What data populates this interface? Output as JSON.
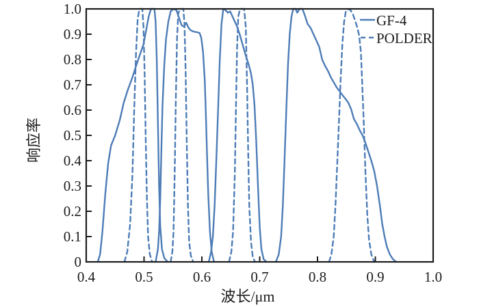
{
  "chart_data": {
    "type": "line",
    "title": "",
    "xlabel": "波长/μm",
    "ylabel": "响应率",
    "xlim": [
      0.4,
      1.0
    ],
    "ylim": [
      0,
      1.0
    ],
    "grid": false,
    "legend_position": "top-right",
    "line_color": "#4d7cb6",
    "axis_color": "#1c1c1c",
    "x_tick_values": [
      0.4,
      0.5,
      0.6,
      0.7,
      0.8,
      0.9,
      1.0
    ],
    "x_tick_labels": [
      "0.4",
      "0.5",
      "0.6",
      "0.7",
      "0.8",
      "0.9",
      "1.0"
    ],
    "y_tick_values": [
      0,
      0.1,
      0.2,
      0.3,
      0.4,
      0.5,
      0.6,
      0.7,
      0.8,
      0.9,
      1.0
    ],
    "y_tick_labels": [
      "0",
      "0.1",
      "0.2",
      "0.3",
      "0.4",
      "0.5",
      "0.6",
      "0.7",
      "0.8",
      "0.9",
      "1.0"
    ],
    "series": [
      {
        "name": "GF-4",
        "line_style": "solid",
        "bands": [
          [
            [
              0.42,
              0
            ],
            [
              0.424,
              0.03
            ],
            [
              0.428,
              0.12
            ],
            [
              0.433,
              0.27
            ],
            [
              0.438,
              0.39
            ],
            [
              0.443,
              0.46
            ],
            [
              0.45,
              0.5
            ],
            [
              0.458,
              0.56
            ],
            [
              0.465,
              0.63
            ],
            [
              0.472,
              0.68
            ],
            [
              0.48,
              0.73
            ],
            [
              0.487,
              0.78
            ],
            [
              0.493,
              0.82
            ],
            [
              0.499,
              0.86
            ],
            [
              0.504,
              0.92
            ],
            [
              0.508,
              0.97
            ],
            [
              0.512,
              1.0
            ],
            [
              0.518,
              1.0
            ],
            [
              0.52,
              0.95
            ],
            [
              0.522,
              0.8
            ],
            [
              0.524,
              0.55
            ],
            [
              0.526,
              0.3
            ],
            [
              0.528,
              0.14
            ],
            [
              0.531,
              0.05
            ],
            [
              0.535,
              0.015
            ],
            [
              0.541,
              0
            ]
          ],
          [
            [
              0.52,
              0
            ],
            [
              0.524,
              0.05
            ],
            [
              0.526,
              0.12
            ],
            [
              0.528,
              0.25
            ],
            [
              0.53,
              0.45
            ],
            [
              0.532,
              0.62
            ],
            [
              0.535,
              0.78
            ],
            [
              0.538,
              0.88
            ],
            [
              0.542,
              0.95
            ],
            [
              0.546,
              0.99
            ],
            [
              0.551,
              1.0
            ],
            [
              0.556,
              0.995
            ],
            [
              0.56,
              0.968
            ],
            [
              0.565,
              0.935
            ],
            [
              0.569,
              0.93
            ],
            [
              0.573,
              0.945
            ],
            [
              0.577,
              0.925
            ],
            [
              0.581,
              0.915
            ],
            [
              0.586,
              0.91
            ],
            [
              0.591,
              0.908
            ],
            [
              0.596,
              0.905
            ],
            [
              0.599,
              0.885
            ],
            [
              0.602,
              0.83
            ],
            [
              0.605,
              0.72
            ],
            [
              0.607,
              0.58
            ],
            [
              0.609,
              0.42
            ],
            [
              0.611,
              0.27
            ],
            [
              0.614,
              0.12
            ],
            [
              0.617,
              0.04
            ],
            [
              0.621,
              0
            ]
          ],
          [
            [
              0.612,
              0
            ],
            [
              0.616,
              0.04
            ],
            [
              0.619,
              0.1
            ],
            [
              0.622,
              0.22
            ],
            [
              0.625,
              0.4
            ],
            [
              0.628,
              0.6
            ],
            [
              0.631,
              0.8
            ],
            [
              0.634,
              0.94
            ],
            [
              0.637,
              1.0
            ],
            [
              0.641,
              0.995
            ],
            [
              0.645,
              0.985
            ],
            [
              0.649,
              0.99
            ],
            [
              0.652,
              0.975
            ],
            [
              0.656,
              0.955
            ],
            [
              0.661,
              0.93
            ],
            [
              0.666,
              0.895
            ],
            [
              0.671,
              0.855
            ],
            [
              0.676,
              0.815
            ],
            [
              0.681,
              0.78
            ],
            [
              0.685,
              0.745
            ],
            [
              0.688,
              0.7
            ],
            [
              0.691,
              0.62
            ],
            [
              0.694,
              0.48
            ],
            [
              0.697,
              0.3
            ],
            [
              0.7,
              0.14
            ],
            [
              0.703,
              0.05
            ],
            [
              0.707,
              0.01
            ],
            [
              0.712,
              0
            ]
          ],
          [
            [
              0.728,
              0
            ],
            [
              0.733,
              0.03
            ],
            [
              0.737,
              0.1
            ],
            [
              0.74,
              0.22
            ],
            [
              0.743,
              0.4
            ],
            [
              0.746,
              0.6
            ],
            [
              0.749,
              0.78
            ],
            [
              0.752,
              0.9
            ],
            [
              0.755,
              0.97
            ],
            [
              0.758,
              1.0
            ],
            [
              0.762,
              1.0
            ],
            [
              0.765,
              0.985
            ],
            [
              0.769,
              1.0
            ],
            [
              0.774,
              1.0
            ],
            [
              0.778,
              0.975
            ],
            [
              0.783,
              0.94
            ],
            [
              0.788,
              0.925
            ],
            [
              0.793,
              0.9
            ],
            [
              0.798,
              0.875
            ],
            [
              0.803,
              0.85
            ],
            [
              0.808,
              0.8
            ],
            [
              0.813,
              0.775
            ],
            [
              0.818,
              0.755
            ],
            [
              0.823,
              0.73
            ],
            [
              0.828,
              0.71
            ],
            [
              0.833,
              0.69
            ],
            [
              0.838,
              0.675
            ],
            [
              0.843,
              0.66
            ],
            [
              0.848,
              0.645
            ],
            [
              0.853,
              0.63
            ],
            [
              0.858,
              0.605
            ],
            [
              0.863,
              0.565
            ],
            [
              0.868,
              0.545
            ],
            [
              0.873,
              0.52
            ],
            [
              0.878,
              0.5
            ],
            [
              0.883,
              0.47
            ],
            [
              0.888,
              0.435
            ],
            [
              0.893,
              0.4
            ],
            [
              0.898,
              0.36
            ],
            [
              0.903,
              0.3
            ],
            [
              0.908,
              0.22
            ],
            [
              0.912,
              0.15
            ],
            [
              0.916,
              0.1
            ],
            [
              0.92,
              0.06
            ],
            [
              0.925,
              0.03
            ],
            [
              0.93,
              0.012
            ],
            [
              0.936,
              0
            ]
          ]
        ]
      },
      {
        "name": "POLDER",
        "line_style": "dashed",
        "bands": [
          [
            [
              0.466,
              0
            ],
            [
              0.471,
              0.04
            ],
            [
              0.476,
              0.15
            ],
            [
              0.48,
              0.35
            ],
            [
              0.483,
              0.6
            ],
            [
              0.486,
              0.82
            ],
            [
              0.489,
              0.96
            ],
            [
              0.492,
              1.0
            ],
            [
              0.497,
              1.0
            ],
            [
              0.499,
              0.93
            ],
            [
              0.501,
              0.75
            ],
            [
              0.503,
              0.48
            ],
            [
              0.505,
              0.25
            ],
            [
              0.507,
              0.1
            ],
            [
              0.51,
              0.03
            ],
            [
              0.514,
              0
            ]
          ],
          [
            [
              0.546,
              0
            ],
            [
              0.549,
              0.04
            ],
            [
              0.551,
              0.12
            ],
            [
              0.553,
              0.35
            ],
            [
              0.555,
              0.65
            ],
            [
              0.557,
              0.88
            ],
            [
              0.559,
              0.98
            ],
            [
              0.562,
              1.0
            ],
            [
              0.568,
              1.0
            ],
            [
              0.57,
              0.94
            ],
            [
              0.572,
              0.75
            ],
            [
              0.574,
              0.46
            ],
            [
              0.576,
              0.22
            ],
            [
              0.578,
              0.08
            ],
            [
              0.581,
              0.025
            ],
            [
              0.585,
              0
            ]
          ],
          [
            [
              0.647,
              0
            ],
            [
              0.651,
              0.04
            ],
            [
              0.654,
              0.12
            ],
            [
              0.657,
              0.35
            ],
            [
              0.659,
              0.62
            ],
            [
              0.661,
              0.85
            ],
            [
              0.663,
              0.97
            ],
            [
              0.666,
              1.0
            ],
            [
              0.673,
              1.0
            ],
            [
              0.676,
              0.93
            ],
            [
              0.678,
              0.72
            ],
            [
              0.68,
              0.45
            ],
            [
              0.682,
              0.22
            ],
            [
              0.685,
              0.08
            ],
            [
              0.688,
              0.02
            ],
            [
              0.692,
              0
            ]
          ],
          [
            [
              0.82,
              0
            ],
            [
              0.824,
              0.03
            ],
            [
              0.828,
              0.1
            ],
            [
              0.831,
              0.22
            ],
            [
              0.834,
              0.38
            ],
            [
              0.837,
              0.55
            ],
            [
              0.84,
              0.72
            ],
            [
              0.843,
              0.86
            ],
            [
              0.846,
              0.95
            ],
            [
              0.849,
              0.99
            ],
            [
              0.853,
              1.0
            ],
            [
              0.857,
              0.995
            ],
            [
              0.861,
              0.98
            ],
            [
              0.865,
              0.955
            ],
            [
              0.869,
              0.925
            ],
            [
              0.872,
              0.895
            ],
            [
              0.875,
              0.83
            ],
            [
              0.877,
              0.72
            ],
            [
              0.88,
              0.55
            ],
            [
              0.883,
              0.35
            ],
            [
              0.886,
              0.19
            ],
            [
              0.889,
              0.09
            ],
            [
              0.893,
              0.03
            ],
            [
              0.898,
              0
            ]
          ]
        ]
      }
    ]
  }
}
